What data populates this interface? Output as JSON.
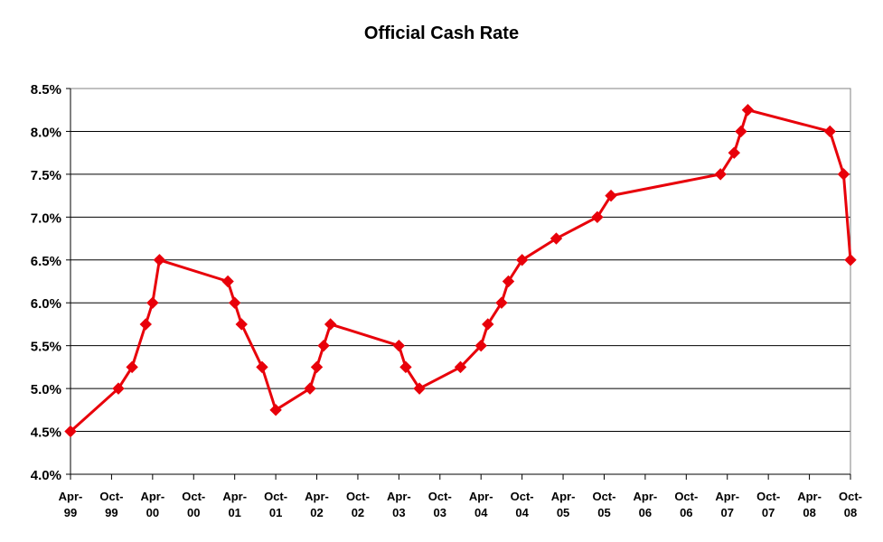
{
  "chart_data": {
    "type": "line",
    "title": "Official Cash Rate",
    "xlabel": "",
    "ylabel": "",
    "ylim": [
      4.0,
      8.5
    ],
    "y_ticks": [
      "4.0%",
      "4.5%",
      "5.0%",
      "5.5%",
      "6.0%",
      "6.5%",
      "7.0%",
      "7.5%",
      "8.0%",
      "8.5%"
    ],
    "x_ticks": [
      [
        "Apr-",
        "99"
      ],
      [
        "Oct-",
        "99"
      ],
      [
        "Apr-",
        "00"
      ],
      [
        "Oct-",
        "00"
      ],
      [
        "Apr-",
        "01"
      ],
      [
        "Oct-",
        "01"
      ],
      [
        "Apr-",
        "02"
      ],
      [
        "Oct-",
        "02"
      ],
      [
        "Apr-",
        "03"
      ],
      [
        "Oct-",
        "03"
      ],
      [
        "Apr-",
        "04"
      ],
      [
        "Oct-",
        "04"
      ],
      [
        "Apr-",
        "05"
      ],
      [
        "Oct-",
        "05"
      ],
      [
        "Apr-",
        "06"
      ],
      [
        "Oct-",
        "06"
      ],
      [
        "Apr-",
        "07"
      ],
      [
        "Oct-",
        "07"
      ],
      [
        "Apr-",
        "08"
      ],
      [
        "Oct-",
        "08"
      ]
    ],
    "x_range": [
      "1999-04",
      "2008-10"
    ],
    "grid": "horizontal",
    "line_color": "#e8000a",
    "marker": "diamond",
    "series": [
      {
        "points": [
          [
            "1999-04",
            4.5
          ],
          [
            "1999-11",
            5.0
          ],
          [
            "2000-01",
            5.25
          ],
          [
            "2000-03",
            5.75
          ],
          [
            "2000-04",
            6.0
          ],
          [
            "2000-05",
            6.5
          ],
          [
            "2001-03",
            6.25
          ],
          [
            "2001-04",
            6.0
          ],
          [
            "2001-05",
            5.75
          ],
          [
            "2001-08",
            5.25
          ],
          [
            "2001-10",
            4.75
          ],
          [
            "2002-03",
            5.0
          ],
          [
            "2002-04",
            5.25
          ],
          [
            "2002-05",
            5.5
          ],
          [
            "2002-06",
            5.75
          ],
          [
            "2003-04",
            5.5
          ],
          [
            "2003-05",
            5.25
          ],
          [
            "2003-07",
            5.0
          ],
          [
            "2004-01",
            5.25
          ],
          [
            "2004-04",
            5.5
          ],
          [
            "2004-05",
            5.75
          ],
          [
            "2004-07",
            6.0
          ],
          [
            "2004-08",
            6.25
          ],
          [
            "2004-10",
            6.5
          ],
          [
            "2005-03",
            6.75
          ],
          [
            "2005-09",
            7.0
          ],
          [
            "2005-11",
            7.25
          ],
          [
            "2007-03",
            7.5
          ],
          [
            "2007-05",
            7.75
          ],
          [
            "2007-06",
            8.0
          ],
          [
            "2007-07",
            8.25
          ],
          [
            "2008-07",
            8.0
          ],
          [
            "2008-09",
            7.5
          ],
          [
            "2008-10",
            6.5
          ]
        ]
      }
    ]
  }
}
